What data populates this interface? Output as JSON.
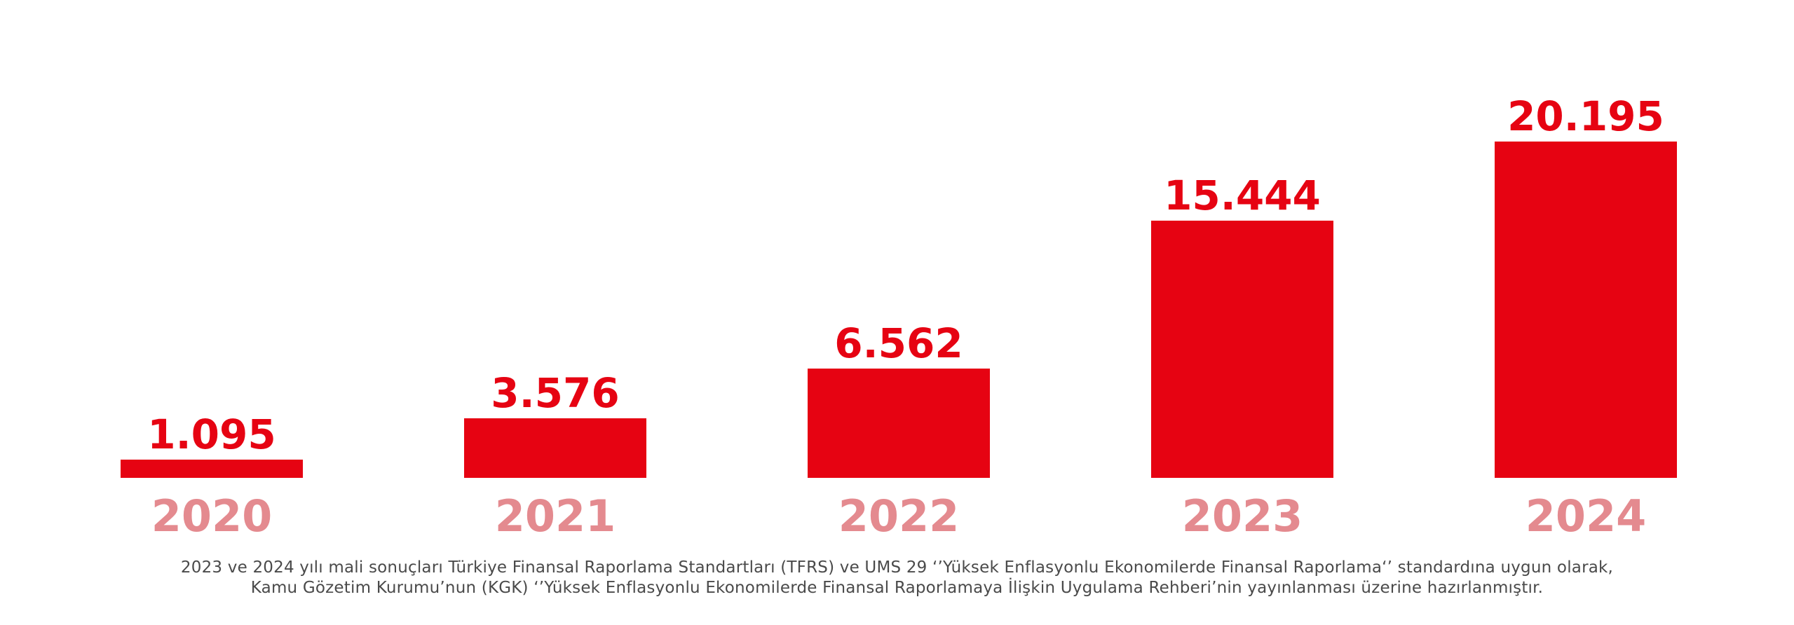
{
  "colors": {
    "bar": "#E60312",
    "value_label": "#E60312",
    "year_label": "#E48A8F",
    "footnote": "#4A4A4A"
  },
  "chart_data": {
    "type": "bar",
    "categories": [
      "2020",
      "2021",
      "2022",
      "2023",
      "2024"
    ],
    "values": [
      1095,
      3576,
      6562,
      15444,
      20195
    ],
    "value_labels": [
      "1.095",
      "3.576",
      "6.562",
      "15.444",
      "20.195"
    ],
    "title": "",
    "xlabel": "",
    "ylabel": "",
    "grid": false,
    "legend": "none"
  },
  "footnote": {
    "line1": "2023 ve 2024 yılı mali sonuçları Türkiye Finansal Raporlama Standartları (TFRS) ve UMS 29 ‘’Yüksek Enflasyonlu Ekonomilerde Finansal Raporlama‘’ standardına uygun olarak,",
    "line2": "Kamu Gözetim Kurumu’nun (KGK) ‘’Yüksek Enflasyonlu Ekonomilerde Finansal Raporlamaya İlişkin Uygulama Rehberi’nin yayınlanması üzerine hazırlanmıştır."
  }
}
